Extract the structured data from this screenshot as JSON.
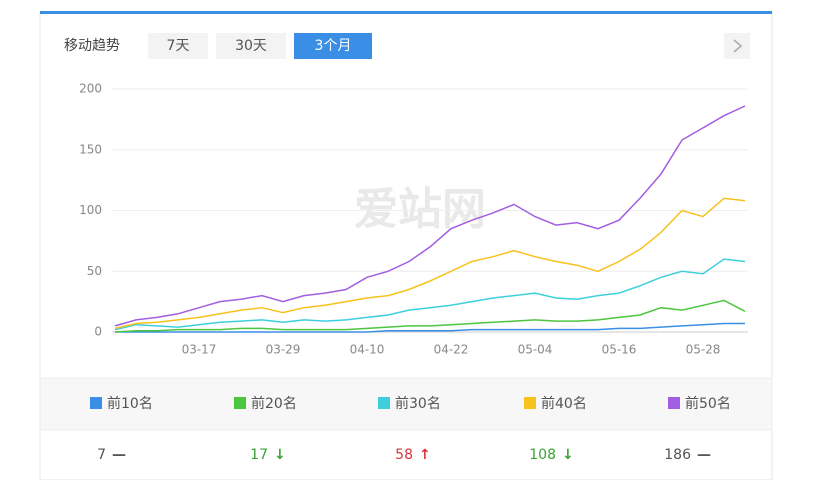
{
  "header": {
    "title": "移动趋势",
    "tabs": [
      "7天",
      "30天",
      "3个月"
    ],
    "active_tab": 2
  },
  "watermark": "爱站网",
  "chart_data": {
    "type": "line",
    "categories": [
      null,
      null,
      null,
      null,
      "03-17",
      null,
      null,
      null,
      "03-29",
      null,
      null,
      null,
      "04-10",
      null,
      null,
      null,
      "04-22",
      null,
      null,
      null,
      "05-04",
      null,
      null,
      null,
      "05-16",
      null,
      null,
      null,
      "05-28",
      null,
      null
    ],
    "series": [
      {
        "name": "前10名",
        "color": "#3a8ee6",
        "values": [
          0,
          0,
          0,
          0,
          0,
          0,
          0,
          0,
          0,
          0,
          0,
          0,
          0,
          1,
          1,
          1,
          1,
          2,
          2,
          2,
          2,
          2,
          2,
          2,
          3,
          3,
          4,
          5,
          6,
          7,
          7
        ]
      },
      {
        "name": "前20名",
        "color": "#4cc53f",
        "values": [
          0,
          1,
          1,
          2,
          2,
          2,
          3,
          3,
          2,
          2,
          2,
          2,
          3,
          4,
          5,
          5,
          6,
          7,
          8,
          9,
          10,
          9,
          9,
          10,
          12,
          14,
          20,
          18,
          22,
          26,
          17
        ]
      },
      {
        "name": "前30名",
        "color": "#3dd0dc",
        "values": [
          2,
          6,
          5,
          4,
          6,
          8,
          9,
          10,
          8,
          10,
          9,
          10,
          12,
          14,
          18,
          20,
          22,
          25,
          28,
          30,
          32,
          28,
          27,
          30,
          32,
          38,
          45,
          50,
          48,
          60,
          58
        ]
      },
      {
        "name": "前40名",
        "color": "#f7c21c",
        "values": [
          3,
          7,
          8,
          10,
          12,
          15,
          18,
          20,
          16,
          20,
          22,
          25,
          28,
          30,
          35,
          42,
          50,
          58,
          62,
          67,
          62,
          58,
          55,
          50,
          58,
          68,
          82,
          100,
          95,
          110,
          108
        ]
      },
      {
        "name": "前50名",
        "color": "#a25ee0",
        "values": [
          5,
          10,
          12,
          15,
          20,
          25,
          27,
          30,
          25,
          30,
          32,
          35,
          45,
          50,
          58,
          70,
          85,
          92,
          98,
          105,
          95,
          88,
          90,
          85,
          92,
          110,
          130,
          158,
          168,
          178,
          186
        ]
      }
    ],
    "ylim": [
      0,
      200
    ],
    "yticks": [
      0,
      50,
      100,
      150,
      200
    ],
    "grid": true
  },
  "summary": [
    {
      "value": 7,
      "trend": "—",
      "color": "#555555"
    },
    {
      "value": 17,
      "trend": "↓",
      "color": "#3aa335"
    },
    {
      "value": 58,
      "trend": "↑",
      "color": "#d9363e"
    },
    {
      "value": 108,
      "trend": "↓",
      "color": "#3aa335"
    },
    {
      "value": 186,
      "trend": "—",
      "color": "#555555"
    }
  ]
}
